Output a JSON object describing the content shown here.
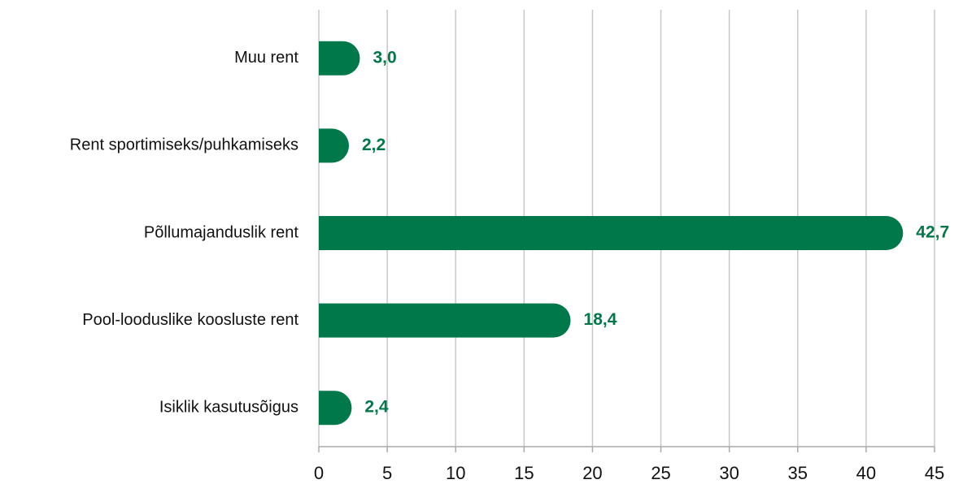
{
  "chart_data": {
    "type": "barh",
    "categories": [
      "Muu rent",
      "Rent sportimiseks/puhkamiseks",
      "Põllumajanduslik rent",
      "Pool-looduslike koosluste rent",
      "Isiklik kasutusõigus"
    ],
    "values": [
      3.0,
      2.2,
      42.7,
      18.4,
      2.4
    ],
    "value_labels": [
      "3,0",
      "2,2",
      "42,7",
      "18,4",
      "2,4"
    ],
    "color": "#00784a",
    "xlim": [
      0,
      45
    ],
    "xticks": [
      0,
      5,
      10,
      15,
      20,
      25,
      30,
      35,
      40,
      45
    ],
    "grid": true
  }
}
